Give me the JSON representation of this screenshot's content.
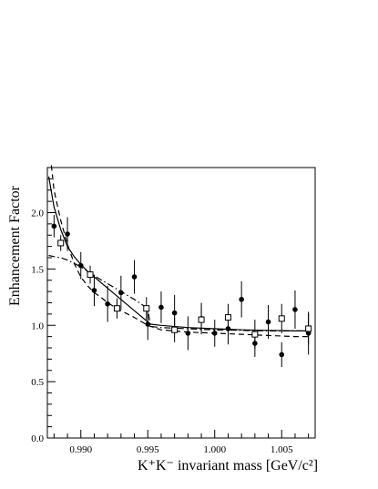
{
  "chart_data": {
    "type": "scatter",
    "xlabel": "K⁺K⁻ invariant mass [GeV/c²]",
    "ylabel": "Enhancement Factor",
    "xlim": [
      0.9875,
      1.0075
    ],
    "ylim": [
      0.0,
      2.4
    ],
    "xticks": [
      0.99,
      0.995,
      1.0,
      1.005
    ],
    "xtick_labels": [
      "0.990",
      "0.995",
      "1.000",
      "1.005"
    ],
    "yticks": [
      0.0,
      0.5,
      1.0,
      1.5,
      2.0
    ],
    "ytick_labels": [
      "0.0",
      "0.5",
      "1.0",
      "1.5",
      "2.0"
    ],
    "grid": false,
    "series": [
      {
        "marker": "filled-circle",
        "points": [
          {
            "x": 0.988,
            "y": 1.88,
            "err": 0.1
          },
          {
            "x": 0.989,
            "y": 1.81,
            "err": 0.15
          },
          {
            "x": 0.99,
            "y": 1.53,
            "err": 0.12
          },
          {
            "x": 0.991,
            "y": 1.31,
            "err": 0.14
          },
          {
            "x": 0.992,
            "y": 1.19,
            "err": 0.16
          },
          {
            "x": 0.993,
            "y": 1.29,
            "err": 0.15
          },
          {
            "x": 0.994,
            "y": 1.43,
            "err": 0.15
          },
          {
            "x": 0.995,
            "y": 1.01,
            "err": 0.14
          },
          {
            "x": 0.996,
            "y": 1.16,
            "err": 0.14
          },
          {
            "x": 0.997,
            "y": 1.11,
            "err": 0.16
          },
          {
            "x": 0.998,
            "y": 0.93,
            "err": 0.15
          },
          {
            "x": 0.999,
            "y": 1.06,
            "err": 0.14
          },
          {
            "x": 1.0,
            "y": 0.93,
            "err": 0.12
          },
          {
            "x": 1.001,
            "y": 0.97,
            "err": 0.14
          },
          {
            "x": 1.002,
            "y": 1.23,
            "err": 0.16
          },
          {
            "x": 1.003,
            "y": 0.84,
            "err": 0.12
          },
          {
            "x": 1.004,
            "y": 1.03,
            "err": 0.15
          },
          {
            "x": 1.005,
            "y": 0.74,
            "err": 0.11
          },
          {
            "x": 1.006,
            "y": 1.14,
            "err": 0.17
          },
          {
            "x": 1.007,
            "y": 0.93,
            "err": 0.19
          }
        ]
      },
      {
        "marker": "open-square",
        "points": [
          {
            "x": 0.9885,
            "y": 1.73,
            "err": 0.07
          },
          {
            "x": 0.9907,
            "y": 1.45,
            "err": 0.08
          },
          {
            "x": 0.9927,
            "y": 1.15,
            "err": 0.09
          },
          {
            "x": 0.9949,
            "y": 1.15,
            "err": 0.1
          },
          {
            "x": 0.997,
            "y": 0.96,
            "err": 0.11
          },
          {
            "x": 0.999,
            "y": 1.05,
            "err": 0.11
          },
          {
            "x": 1.001,
            "y": 1.07,
            "err": 0.12
          },
          {
            "x": 1.003,
            "y": 0.92,
            "err": 0.13
          },
          {
            "x": 1.005,
            "y": 1.06,
            "err": 0.13
          },
          {
            "x": 1.007,
            "y": 0.97,
            "err": 0.14
          }
        ]
      }
    ],
    "curves": [
      {
        "style": "solid",
        "x": [
          0.9876,
          0.988,
          0.9885,
          0.989,
          0.9895,
          0.99,
          0.9905,
          0.991,
          0.992,
          0.993,
          0.994,
          0.995,
          0.9952,
          0.996,
          0.998,
          1.0,
          1.002,
          1.004,
          1.006,
          1.0072
        ],
        "y": [
          2.32,
          2.05,
          1.85,
          1.7,
          1.61,
          1.54,
          1.48,
          1.43,
          1.33,
          1.23,
          1.13,
          1.03,
          1.01,
          1.0,
          0.98,
          0.97,
          0.96,
          0.955,
          0.95,
          0.95
        ]
      },
      {
        "style": "dashed",
        "x": [
          0.9878,
          0.988,
          0.9885,
          0.989,
          0.9895,
          0.99,
          0.9905,
          0.991,
          0.9915,
          0.992,
          0.993,
          0.994,
          0.995,
          0.996,
          0.998,
          1.0,
          1.002,
          1.004,
          1.006,
          1.0072
        ],
        "y": [
          2.42,
          2.2,
          1.93,
          1.72,
          1.55,
          1.43,
          1.35,
          1.29,
          1.25,
          1.2,
          1.13,
          1.07,
          1.0,
          0.96,
          0.94,
          0.93,
          0.92,
          0.91,
          0.9,
          0.9
        ]
      },
      {
        "style": "dash-dot",
        "x": [
          0.9876,
          0.988,
          0.9885,
          0.989,
          0.9895,
          0.99,
          0.991,
          0.992,
          0.993,
          0.994,
          0.995,
          0.9952,
          0.996,
          0.998,
          1.0,
          1.002,
          1.004,
          1.006,
          1.0072
        ],
        "y": [
          1.62,
          1.61,
          1.6,
          1.58,
          1.55,
          1.52,
          1.44,
          1.37,
          1.3,
          1.23,
          1.15,
          0.99,
          0.98,
          0.97,
          0.96,
          0.955,
          0.95,
          0.95,
          0.95
        ]
      }
    ]
  }
}
